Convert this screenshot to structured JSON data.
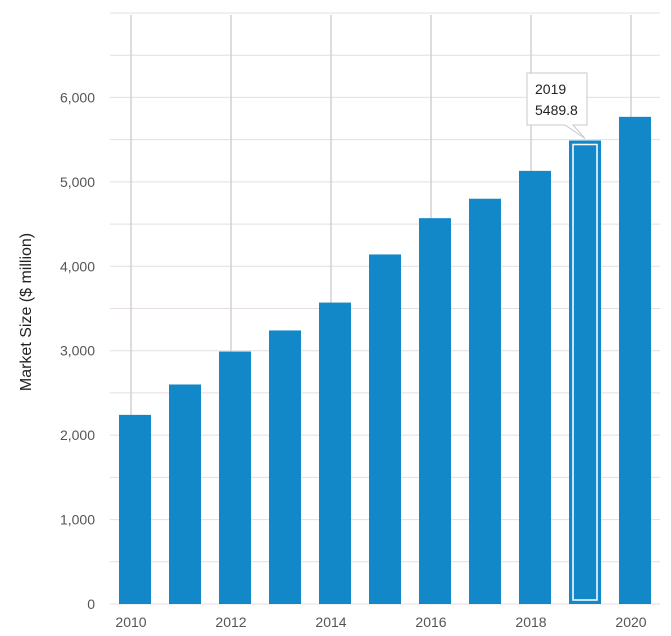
{
  "chart_data": {
    "type": "bar",
    "categories": [
      "2010",
      "2011",
      "2012",
      "2013",
      "2014",
      "2015",
      "2016",
      "2017",
      "2018",
      "2019",
      "2020"
    ],
    "values": [
      2240,
      2600,
      2990,
      3240,
      3570,
      4140,
      4570,
      4800,
      5130,
      5489.8,
      5770
    ],
    "xlabel": "",
    "ylabel": "Market Size ($ million)",
    "ylim": [
      0,
      7000
    ],
    "yticks": [
      0,
      1000,
      2000,
      3000,
      4000,
      5000,
      6000
    ],
    "ytick_labels": [
      "0",
      "1,000",
      "2,000",
      "3,000",
      "4,000",
      "5,000",
      "6,000"
    ],
    "xtick_labels": [
      "2010",
      "2012",
      "2014",
      "2016",
      "2018",
      "2020"
    ],
    "bar_color": "#1388c8",
    "highlighted_category": "2019",
    "grid": true,
    "tooltip": {
      "label": "2019",
      "value": "5489.8"
    }
  }
}
